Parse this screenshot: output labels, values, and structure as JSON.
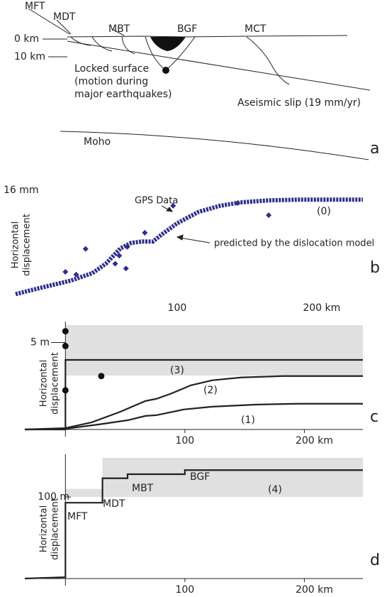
{
  "diagram": {
    "faults": [
      "MFT",
      "MDT",
      "MBT",
      "BGF",
      "MCT"
    ],
    "depths": [
      "0 km",
      "10 km"
    ],
    "locked": [
      "Locked surface",
      "(motion during",
      "major earthquakes)"
    ],
    "aseismic": "Aseismic slip (19 mm/yr)",
    "moho": "Moho",
    "panel": "a"
  },
  "chart_data": [
    {
      "type": "line",
      "panel": "b",
      "ylabel": [
        "Horizontal",
        "displacement"
      ],
      "xlim": [
        -20,
        238
      ],
      "ylim": [
        0,
        16
      ],
      "xticks": [
        100,
        {
          "value": 200,
          "label": "200 km"
        }
      ],
      "yticks": [
        {
          "value": 16,
          "label": "16 mm"
        }
      ],
      "annotations": [
        "GPS Data",
        "predicted by the dislocation model",
        "(0)"
      ],
      "series": [
        {
          "style": "thick-dotted",
          "color": "#2e2e8c",
          "x": [
            -20,
            0,
            21,
            37,
            47,
            58,
            66,
            74,
            82,
            89,
            100,
            116,
            132,
            147,
            168,
            189,
            238
          ],
          "values": [
            0.6,
            1.6,
            2.6,
            3.7,
            5.1,
            7.4,
            8.2,
            8.4,
            8.4,
            9.5,
            11.1,
            12.8,
            13.7,
            14.2,
            14.5,
            14.6,
            14.6
          ]
        },
        {
          "style": "diamonds",
          "color": "#2e2e8c",
          "x": [
            17,
            25,
            32,
            54,
            57,
            63,
            62,
            76,
            97,
            145,
            168
          ],
          "values": [
            3.9,
            3.5,
            7.3,
            5.1,
            6.3,
            7.6,
            4.4,
            9.7,
            13.7,
            14.1,
            12.3
          ]
        }
      ]
    },
    {
      "type": "line",
      "panel": "c",
      "ylabel": [
        "Horizontal",
        "displacement"
      ],
      "xlim": [
        -34,
        249
      ],
      "ylim": [
        0,
        6
      ],
      "axes": true,
      "xticks": [
        100,
        {
          "value": 200,
          "label": "200 km"
        }
      ],
      "yticks": [
        {
          "value": 5,
          "label": "5 m"
        }
      ],
      "shaded": [
        {
          "x": [
            0,
            249
          ],
          "y": [
            3.1,
            6
          ]
        }
      ],
      "annotations": [
        "(3)",
        "(2)",
        "(1)"
      ],
      "series": [
        {
          "style": "line",
          "color": "#222222",
          "x": [
            -34,
            0,
            0,
            249
          ],
          "values": [
            0,
            0,
            4.0,
            4.0
          ]
        },
        {
          "style": "line",
          "color": "#222222",
          "x": [
            -34,
            0,
            22,
            46,
            67,
            76,
            88,
            105,
            123,
            147,
            182,
            249
          ],
          "values": [
            0,
            0.08,
            0.41,
            1.02,
            1.64,
            1.76,
            2.05,
            2.54,
            2.83,
            2.99,
            3.07,
            3.07
          ]
        },
        {
          "style": "line",
          "color": "#222222",
          "x": [
            -34,
            0,
            28,
            52,
            67,
            76,
            99,
            123,
            159,
            194,
            249
          ],
          "values": [
            0,
            0.04,
            0.29,
            0.53,
            0.78,
            0.82,
            1.15,
            1.31,
            1.43,
            1.48,
            1.48
          ]
        },
        {
          "style": "dots",
          "color": "#111111",
          "x": [
            0,
            0,
            0,
            30
          ],
          "values": [
            5.65,
            4.8,
            2.25,
            3.07
          ]
        }
      ]
    },
    {
      "type": "line",
      "panel": "d",
      "ylabel": [
        "Horizontal",
        "displacement"
      ],
      "xlim": [
        -34,
        249
      ],
      "ylim": [
        0,
        148
      ],
      "axes": true,
      "xticks": [
        100,
        {
          "value": 200,
          "label": "200 km"
        }
      ],
      "yticks": [
        {
          "value": 100,
          "label": "100 m"
        }
      ],
      "shaded": [
        {
          "x": [
            0,
            31
          ],
          "y": [
            100,
            110
          ]
        },
        {
          "x": [
            31,
            249
          ],
          "y": [
            100,
            148
          ]
        }
      ],
      "annotations": [
        "MFT",
        "MDT",
        "MBT",
        "BGF",
        "(4)"
      ],
      "series": [
        {
          "style": "line",
          "color": "#222222",
          "x": [
            -34,
            0,
            0,
            31,
            31,
            52,
            52,
            100,
            100,
            249
          ],
          "values": [
            0,
            1.7,
            93,
            93,
            123,
            123,
            128,
            128,
            133,
            133
          ]
        }
      ]
    }
  ]
}
